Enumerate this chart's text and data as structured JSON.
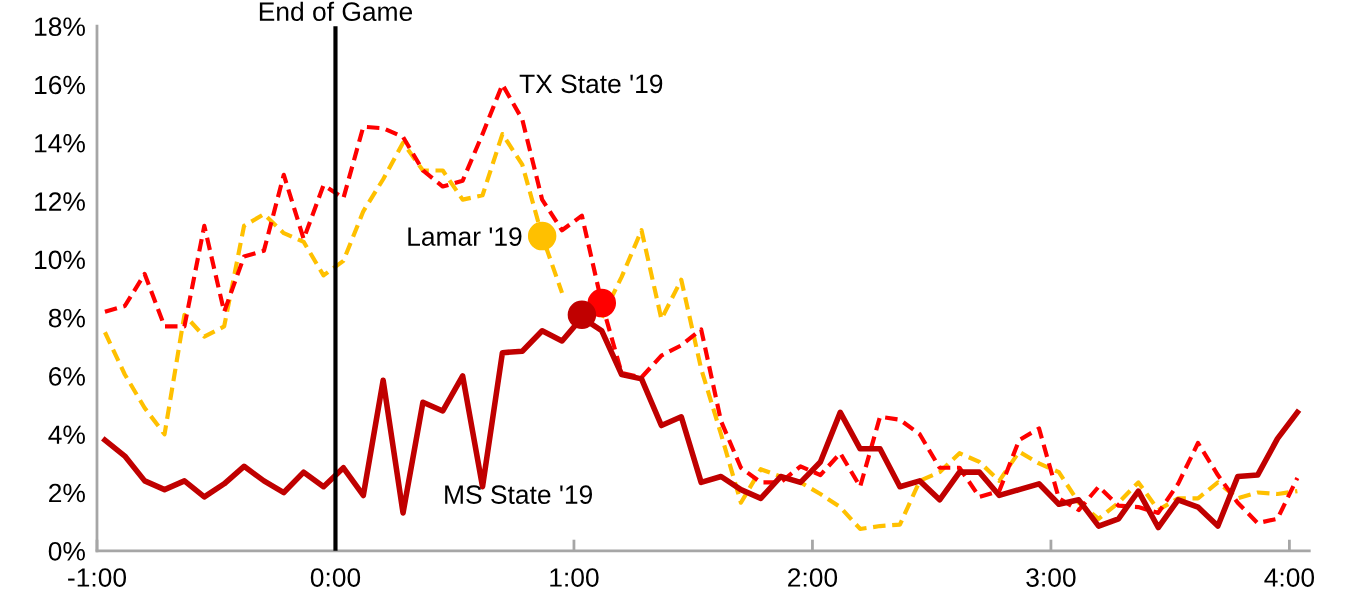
{
  "chart_data": {
    "type": "line",
    "x": [
      -58,
      -53,
      -48,
      -43,
      -38,
      -33,
      -28,
      -23,
      -18,
      -13,
      -8,
      -3,
      2,
      7,
      12,
      17,
      22,
      27,
      32,
      37,
      42,
      47,
      52,
      57,
      62,
      67,
      72,
      77,
      82,
      87,
      92,
      97,
      102,
      107,
      112,
      117,
      122,
      127,
      132,
      137,
      142,
      147,
      152,
      157,
      162,
      167,
      172,
      177,
      182,
      187,
      192,
      197,
      202,
      207,
      212,
      217,
      222,
      227,
      232,
      237,
      242
    ],
    "xlim": [
      -60,
      245
    ],
    "xticks": [
      {
        "value": -60,
        "label": "-1:00"
      },
      {
        "value": 0,
        "label": "0:00"
      },
      {
        "value": 60,
        "label": "1:00"
      },
      {
        "value": 120,
        "label": "2:00"
      },
      {
        "value": 180,
        "label": "3:00"
      },
      {
        "value": 240,
        "label": "4:00"
      }
    ],
    "ylim": [
      0,
      18
    ],
    "yticks": [
      {
        "value": 0,
        "label": "0%"
      },
      {
        "value": 2,
        "label": "2%"
      },
      {
        "value": 4,
        "label": "4%"
      },
      {
        "value": 6,
        "label": "6%"
      },
      {
        "value": 8,
        "label": "8%"
      },
      {
        "value": 10,
        "label": "10%"
      },
      {
        "value": 12,
        "label": "12%"
      },
      {
        "value": 14,
        "label": "14%"
      },
      {
        "value": 16,
        "label": "16%"
      },
      {
        "value": 18,
        "label": "18%"
      }
    ],
    "grid": false,
    "legend": false,
    "ref_lines": [
      {
        "axis": "x",
        "value": 0,
        "label": "End of Game",
        "color": "#000000"
      }
    ],
    "series": [
      {
        "name": "Lamar '19",
        "color": "#ffc000",
        "line_style": "dashed",
        "values": [
          7.5,
          6.05,
          4.9,
          4.0,
          8.1,
          7.35,
          7.7,
          11.15,
          11.55,
          10.9,
          10.6,
          9.45,
          9.95,
          11.65,
          12.75,
          14.0,
          13.05,
          13.05,
          12.05,
          12.2,
          14.3,
          13.25,
          10.8,
          8.85,
          null,
          8.0,
          9.4,
          11.0,
          7.95,
          9.3,
          6.25,
          4.0,
          1.65,
          2.8,
          2.55,
          2.35,
          1.95,
          1.5,
          0.75,
          0.85,
          0.9,
          2.4,
          2.7,
          3.35,
          3.05,
          2.4,
          3.4,
          3.0,
          2.7,
          1.65,
          1.1,
          1.65,
          2.35,
          1.4,
          1.8,
          1.8,
          2.35,
          1.8,
          2.0,
          1.95,
          2.05
        ]
      },
      {
        "name": "TX State '19",
        "color": "#ff0000",
        "line_style": "dashed",
        "values": [
          8.2,
          8.4,
          9.5,
          7.7,
          7.7,
          11.15,
          8.2,
          10.1,
          10.3,
          12.9,
          10.7,
          12.55,
          12.1,
          14.55,
          14.5,
          14.2,
          13.05,
          12.5,
          12.7,
          14.3,
          16.0,
          14.8,
          12.05,
          11.0,
          11.5,
          8.5,
          6.1,
          5.95,
          6.7,
          7.05,
          7.6,
          4.45,
          2.85,
          2.35,
          2.35,
          2.9,
          2.6,
          3.35,
          2.2,
          4.6,
          4.5,
          4.0,
          2.85,
          2.85,
          1.85,
          2.05,
          3.8,
          4.2,
          1.8,
          1.4,
          2.2,
          1.55,
          1.5,
          1.3,
          2.3,
          3.7,
          2.6,
          1.65,
          0.95,
          1.1,
          2.5
        ]
      },
      {
        "name": "MS State '19",
        "color": "#c00000",
        "line_style": "solid",
        "values": [
          3.8,
          3.25,
          2.4,
          2.1,
          2.4,
          1.85,
          2.3,
          2.9,
          2.4,
          2.0,
          2.7,
          2.2,
          2.85,
          1.9,
          5.85,
          1.3,
          5.1,
          4.8,
          6.0,
          2.2,
          6.8,
          6.85,
          7.55,
          7.2,
          8.0,
          7.55,
          6.05,
          5.9,
          4.3,
          4.6,
          2.35,
          2.55,
          2.1,
          1.8,
          2.55,
          2.35,
          3.05,
          4.75,
          3.5,
          3.5,
          2.2,
          2.4,
          1.75,
          2.7,
          2.7,
          1.9,
          2.1,
          2.3,
          1.6,
          1.75,
          0.85,
          1.1,
          2.05,
          0.8,
          1.75,
          1.5,
          0.85,
          2.55,
          2.6,
          3.85,
          4.75
        ]
      },
      {
        "type": "scatter",
        "color": "#ffc000",
        "marker": "circle",
        "x": [
          52
        ],
        "values": [
          10.8
        ]
      },
      {
        "type": "scatter",
        "color": "#ff0000",
        "marker": "circle",
        "x": [
          67
        ],
        "values": [
          8.5
        ]
      },
      {
        "type": "scatter",
        "color": "#c00000",
        "marker": "circle",
        "x": [
          62
        ],
        "values": [
          8.1
        ]
      }
    ]
  }
}
